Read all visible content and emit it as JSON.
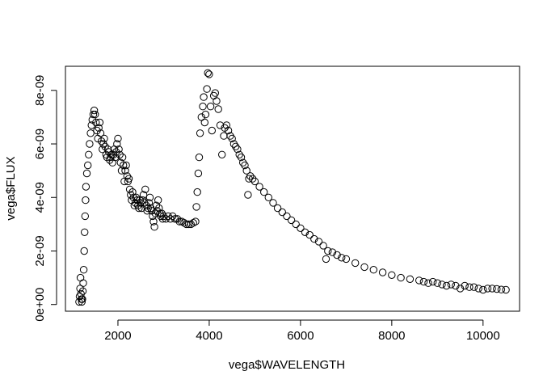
{
  "chart_data": {
    "type": "scatter",
    "xlabel": "vega$WAVELENGTH",
    "ylabel": "vega$FLUX",
    "xlim": [
      850,
      10800
    ],
    "ylim": [
      -2.5e-10,
      8.9e-09
    ],
    "x_ticks": [
      2000,
      4000,
      6000,
      8000,
      10000
    ],
    "x_tick_labels": [
      "2000",
      "4000",
      "6000",
      "8000",
      "10000"
    ],
    "y_ticks": [
      0,
      2e-09,
      4e-09,
      6e-09,
      8e-09
    ],
    "y_tick_labels": [
      "0e+00",
      "2e-09",
      "4e-09",
      "6e-09",
      "8e-09"
    ],
    "marker": "open-circle",
    "grid": false,
    "legend": "none",
    "points": [
      [
        1150,
        1e-10
      ],
      [
        1160,
        3e-10
      ],
      [
        1170,
        6e-10
      ],
      [
        1180,
        1e-09
      ],
      [
        1190,
        4e-10
      ],
      [
        1200,
        2e-10
      ],
      [
        1210,
        1e-10
      ],
      [
        1220,
        2e-10
      ],
      [
        1230,
        5e-10
      ],
      [
        1240,
        8e-10
      ],
      [
        1250,
        1.3e-09
      ],
      [
        1260,
        2e-09
      ],
      [
        1270,
        2.7e-09
      ],
      [
        1280,
        3.3e-09
      ],
      [
        1290,
        3.9e-09
      ],
      [
        1300,
        4.4e-09
      ],
      [
        1320,
        4.9e-09
      ],
      [
        1340,
        5.2e-09
      ],
      [
        1360,
        5.6e-09
      ],
      [
        1380,
        6e-09
      ],
      [
        1400,
        6.4e-09
      ],
      [
        1420,
        6.7e-09
      ],
      [
        1440,
        6.9e-09
      ],
      [
        1460,
        7.1e-09
      ],
      [
        1480,
        7.25e-09
      ],
      [
        1500,
        7.1e-09
      ],
      [
        1520,
        6.8e-09
      ],
      [
        1540,
        6.5e-09
      ],
      [
        1560,
        6.2e-09
      ],
      [
        1580,
        6.6e-09
      ],
      [
        1600,
        6.8e-09
      ],
      [
        1620,
        6.4e-09
      ],
      [
        1640,
        6.1e-09
      ],
      [
        1660,
        5.8e-09
      ],
      [
        1680,
        6e-09
      ],
      [
        1700,
        6.2e-09
      ],
      [
        1720,
        5.9e-09
      ],
      [
        1740,
        5.6e-09
      ],
      [
        1760,
        5.5e-09
      ],
      [
        1780,
        5.8e-09
      ],
      [
        1800,
        5.7e-09
      ],
      [
        1820,
        5.4e-09
      ],
      [
        1840,
        5.5e-09
      ],
      [
        1860,
        5.6e-09
      ],
      [
        1880,
        5.3e-09
      ],
      [
        1900,
        5.6e-09
      ],
      [
        1920,
        5.8e-09
      ],
      [
        1940,
        5.5e-09
      ],
      [
        1960,
        5.7e-09
      ],
      [
        1980,
        6e-09
      ],
      [
        2000,
        6.2e-09
      ],
      [
        2020,
        5.8e-09
      ],
      [
        2040,
        5.6e-09
      ],
      [
        2060,
        5.3e-09
      ],
      [
        2080,
        5e-09
      ],
      [
        2100,
        5.5e-09
      ],
      [
        2120,
        5.2e-09
      ],
      [
        2140,
        4.6e-09
      ],
      [
        2160,
        5e-09
      ],
      [
        2180,
        5.2e-09
      ],
      [
        2200,
        4.8e-09
      ],
      [
        2220,
        4.6e-09
      ],
      [
        2240,
        4.7e-09
      ],
      [
        2260,
        4.3e-09
      ],
      [
        2280,
        4.1e-09
      ],
      [
        2300,
        3.9e-09
      ],
      [
        2320,
        4.2e-09
      ],
      [
        2340,
        4e-09
      ],
      [
        2360,
        3.7e-09
      ],
      [
        2380,
        3.8e-09
      ],
      [
        2400,
        4e-09
      ],
      [
        2420,
        3.9e-09
      ],
      [
        2440,
        3.7e-09
      ],
      [
        2460,
        3.6e-09
      ],
      [
        2480,
        3.9e-09
      ],
      [
        2500,
        3.8e-09
      ],
      [
        2520,
        3.6e-09
      ],
      [
        2540,
        3.9e-09
      ],
      [
        2560,
        4.1e-09
      ],
      [
        2580,
        3.8e-09
      ],
      [
        2600,
        4.3e-09
      ],
      [
        2620,
        3.7e-09
      ],
      [
        2640,
        3.5e-09
      ],
      [
        2660,
        3.6e-09
      ],
      [
        2680,
        3.8e-09
      ],
      [
        2700,
        4e-09
      ],
      [
        2720,
        3.6e-09
      ],
      [
        2740,
        3.5e-09
      ],
      [
        2760,
        3.3e-09
      ],
      [
        2780,
        3.1e-09
      ],
      [
        2800,
        2.9e-09
      ],
      [
        2820,
        3.4e-09
      ],
      [
        2840,
        3.7e-09
      ],
      [
        2860,
        3.5e-09
      ],
      [
        2880,
        3.9e-09
      ],
      [
        2900,
        3.6e-09
      ],
      [
        2920,
        3.4e-09
      ],
      [
        2940,
        3.3e-09
      ],
      [
        2960,
        3.4e-09
      ],
      [
        2980,
        3.2e-09
      ],
      [
        3000,
        3.3e-09
      ],
      [
        3050,
        3.2e-09
      ],
      [
        3100,
        3.3e-09
      ],
      [
        3150,
        3.2e-09
      ],
      [
        3200,
        3.3e-09
      ],
      [
        3250,
        3.2e-09
      ],
      [
        3300,
        3.2e-09
      ],
      [
        3350,
        3.1e-09
      ],
      [
        3400,
        3.1e-09
      ],
      [
        3450,
        3.05e-09
      ],
      [
        3500,
        3e-09
      ],
      [
        3550,
        3e-09
      ],
      [
        3600,
        3e-09
      ],
      [
        3650,
        3.05e-09
      ],
      [
        3700,
        3.1e-09
      ],
      [
        3720,
        3.65e-09
      ],
      [
        3740,
        4.2e-09
      ],
      [
        3760,
        4.9e-09
      ],
      [
        3780,
        5.5e-09
      ],
      [
        3800,
        6.4e-09
      ],
      [
        3830,
        7e-09
      ],
      [
        3860,
        7.4e-09
      ],
      [
        3880,
        7.75e-09
      ],
      [
        3900,
        6.8e-09
      ],
      [
        3920,
        7.1e-09
      ],
      [
        3950,
        8.05e-09
      ],
      [
        3970,
        8.65e-09
      ],
      [
        4000,
        8.6e-09
      ],
      [
        4030,
        7.4e-09
      ],
      [
        4060,
        6.5e-09
      ],
      [
        4100,
        7.8e-09
      ],
      [
        4130,
        7.9e-09
      ],
      [
        4160,
        7.6e-09
      ],
      [
        4200,
        7.3e-09
      ],
      [
        4240,
        6.7e-09
      ],
      [
        4280,
        5.6e-09
      ],
      [
        4320,
        6.3e-09
      ],
      [
        4340,
        6.6e-09
      ],
      [
        4380,
        6.7e-09
      ],
      [
        4420,
        6.5e-09
      ],
      [
        4460,
        6.3e-09
      ],
      [
        4500,
        6.2e-09
      ],
      [
        4540,
        6e-09
      ],
      [
        4580,
        5.9e-09
      ],
      [
        4620,
        5.8e-09
      ],
      [
        4660,
        5.6e-09
      ],
      [
        4700,
        5.5e-09
      ],
      [
        4740,
        5.3e-09
      ],
      [
        4780,
        5.2e-09
      ],
      [
        4820,
        5e-09
      ],
      [
        4850,
        4.1e-09
      ],
      [
        4870,
        4.7e-09
      ],
      [
        4900,
        4.8e-09
      ],
      [
        4950,
        4.7e-09
      ],
      [
        5000,
        4.6e-09
      ],
      [
        5100,
        4.4e-09
      ],
      [
        5200,
        4.2e-09
      ],
      [
        5300,
        4e-09
      ],
      [
        5400,
        3.8e-09
      ],
      [
        5500,
        3.6e-09
      ],
      [
        5600,
        3.45e-09
      ],
      [
        5700,
        3.3e-09
      ],
      [
        5800,
        3.15e-09
      ],
      [
        5900,
        3e-09
      ],
      [
        6000,
        2.85e-09
      ],
      [
        6100,
        2.7e-09
      ],
      [
        6200,
        2.6e-09
      ],
      [
        6300,
        2.45e-09
      ],
      [
        6400,
        2.35e-09
      ],
      [
        6500,
        2.2e-09
      ],
      [
        6560,
        1.7e-09
      ],
      [
        6600,
        2e-09
      ],
      [
        6700,
        1.95e-09
      ],
      [
        6800,
        1.85e-09
      ],
      [
        6900,
        1.75e-09
      ],
      [
        7000,
        1.7e-09
      ],
      [
        7200,
        1.55e-09
      ],
      [
        7400,
        1.4e-09
      ],
      [
        7600,
        1.3e-09
      ],
      [
        7800,
        1.2e-09
      ],
      [
        8000,
        1.1e-09
      ],
      [
        8200,
        1e-09
      ],
      [
        8400,
        9.5e-10
      ],
      [
        8600,
        9e-10
      ],
      [
        8700,
        8.5e-10
      ],
      [
        8800,
        8e-10
      ],
      [
        8900,
        8.5e-10
      ],
      [
        9000,
        8e-10
      ],
      [
        9100,
        7.5e-10
      ],
      [
        9200,
        7e-10
      ],
      [
        9300,
        7.5e-10
      ],
      [
        9400,
        7e-10
      ],
      [
        9500,
        6e-10
      ],
      [
        9600,
        7e-10
      ],
      [
        9700,
        6.5e-10
      ],
      [
        9800,
        6.5e-10
      ],
      [
        9900,
        6e-10
      ],
      [
        10000,
        5.5e-10
      ],
      [
        10100,
        6e-10
      ],
      [
        10200,
        6e-10
      ],
      [
        10300,
        5.8e-10
      ],
      [
        10400,
        5.6e-10
      ],
      [
        10500,
        5.5e-10
      ]
    ]
  }
}
